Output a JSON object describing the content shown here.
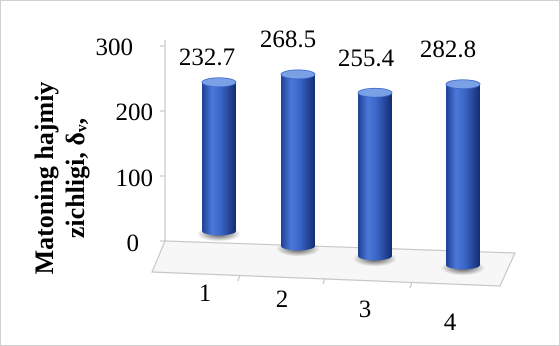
{
  "chart_data": {
    "type": "bar",
    "style": "3d-cylinder",
    "categories": [
      "1",
      "2",
      "3",
      "4"
    ],
    "values": [
      232.7,
      268.5,
      255.4,
      282.8
    ],
    "data_labels": [
      "232.7",
      "268.5",
      "255.4",
      "282.8"
    ],
    "ylabel_lines": [
      "Matoning hajmiy",
      "zichligi, δᵥ,"
    ],
    "ylim": [
      0,
      300
    ],
    "yticks": [
      "0",
      "100",
      "200",
      "300"
    ],
    "grid": false,
    "legend": "none",
    "colors": {
      "bar_light": "#7aa0e6",
      "bar_mid": "#3a66c8",
      "bar_dark": "#14307a",
      "floor": "#f6f6f6",
      "frame": "#c8c8c8"
    }
  }
}
